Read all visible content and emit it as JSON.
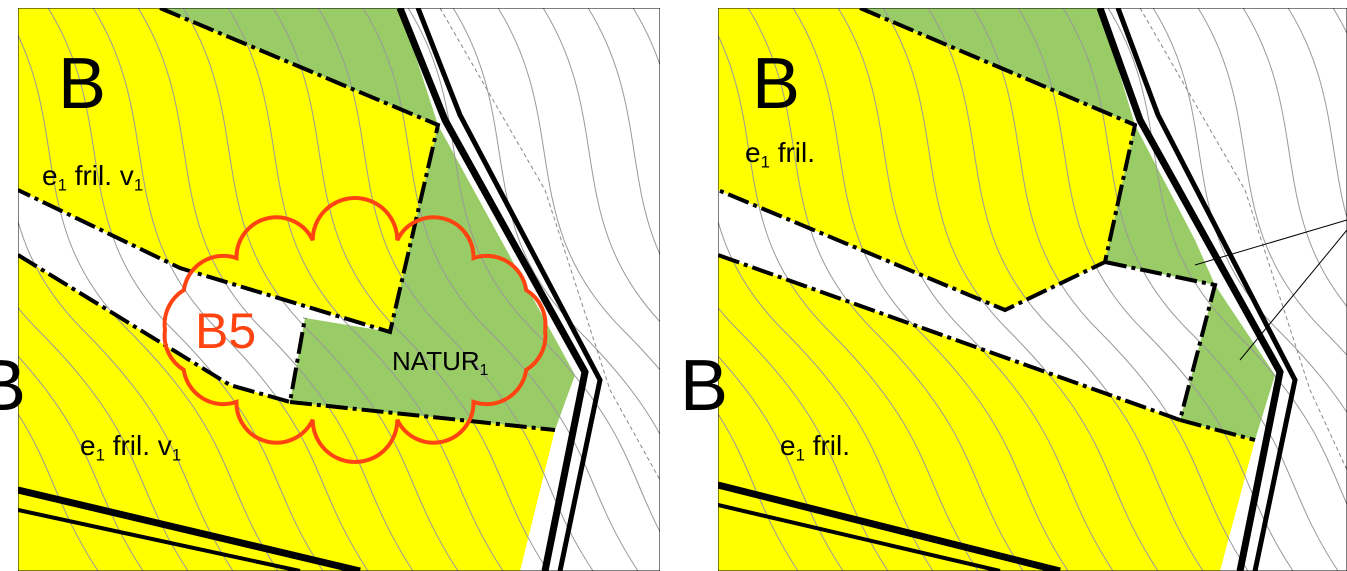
{
  "panels": [
    {
      "labels": [
        {
          "parts": [
            "B"
          ]
        },
        {
          "parts": [
            "e",
            "1",
            " fril. v",
            "1"
          ]
        },
        {
          "parts": [
            "B5"
          ]
        },
        {
          "parts": [
            "NATUR",
            "1"
          ]
        },
        {
          "parts": [
            "B"
          ]
        },
        {
          "parts": [
            "e",
            "1",
            " fril. v",
            "1"
          ]
        }
      ]
    },
    {
      "labels": [
        {
          "parts": [
            "B"
          ]
        },
        {
          "parts": [
            "e",
            "1",
            " fril."
          ]
        },
        {
          "parts": [
            "B"
          ]
        },
        {
          "parts": [
            "e",
            "1",
            " fril."
          ]
        }
      ]
    }
  ]
}
